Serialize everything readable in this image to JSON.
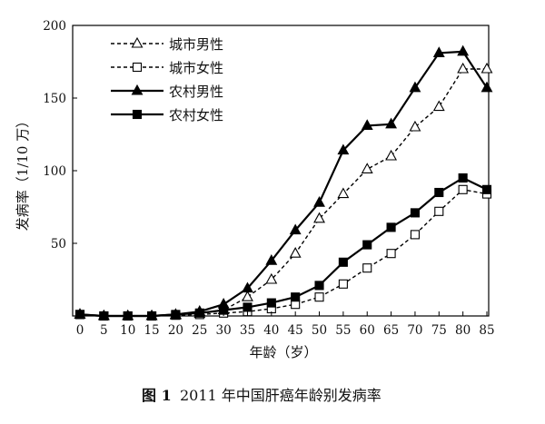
{
  "chart_data": {
    "type": "line",
    "title": "",
    "caption": {
      "label": "图 1",
      "text": "2011 年中国肝癌年龄别发病率"
    },
    "xlabel": "年龄（岁）",
    "ylabel": "发病率（1/10 万）",
    "x_ticks": [
      "0",
      "5",
      "10",
      "15",
      "20",
      "25",
      "30",
      "35",
      "40",
      "45",
      "50",
      "55",
      "60",
      "65",
      "70",
      "75",
      "80",
      "85"
    ],
    "y_ticks": [
      "50",
      "100",
      "150",
      "200"
    ],
    "ylim": [
      0,
      200
    ],
    "legend_position": "top-left",
    "series": [
      {
        "name": "城市男性",
        "marker": "open-triangle",
        "dash": true,
        "values": [
          1,
          0,
          0,
          0,
          0.5,
          1.5,
          4,
          13,
          25,
          43,
          67,
          84,
          101,
          110,
          130,
          144,
          170,
          170
        ]
      },
      {
        "name": "城市女性",
        "marker": "open-square",
        "dash": true,
        "values": [
          1,
          0,
          0,
          0,
          0.5,
          1,
          2,
          3,
          5,
          8,
          13,
          22,
          33,
          43,
          56,
          72,
          87,
          84
        ]
      },
      {
        "name": "农村男性",
        "marker": "filled-triangle",
        "dash": false,
        "values": [
          1,
          0,
          0,
          0,
          1,
          3,
          8,
          19,
          38,
          59,
          78,
          114,
          131,
          132,
          157,
          181,
          182,
          157
        ]
      },
      {
        "name": "农村女性",
        "marker": "filled-square",
        "dash": false,
        "values": [
          1,
          0,
          0,
          0,
          1,
          2,
          4,
          6,
          9,
          13,
          21,
          37,
          49,
          61,
          71,
          85,
          95,
          87
        ]
      }
    ]
  }
}
